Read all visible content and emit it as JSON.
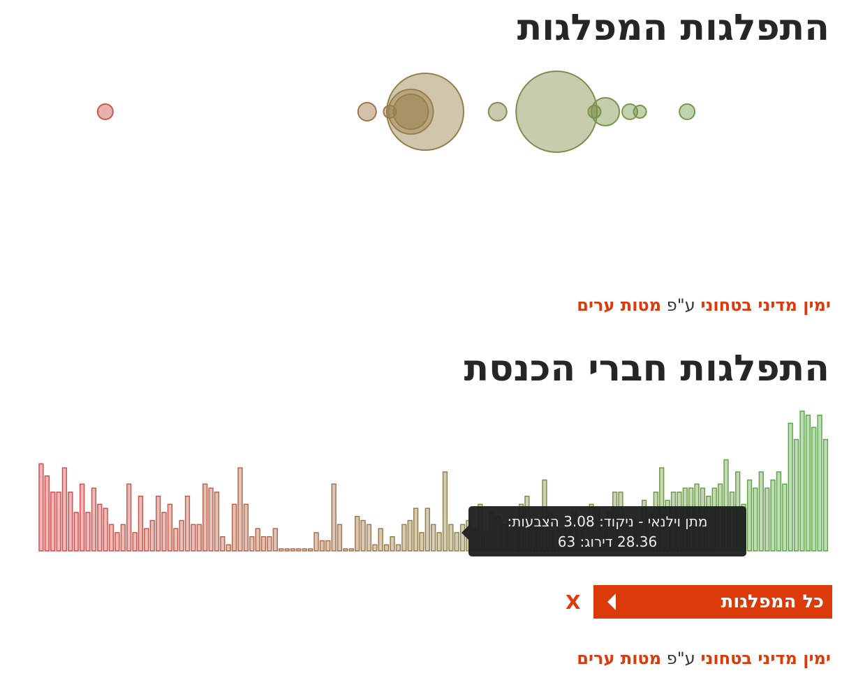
{
  "sections": {
    "parties_title": "התפלגות המפלגות",
    "members_title": "התפלגות חברי הכנסת"
  },
  "credit": {
    "prefix": "ימין מדיני בטחוני",
    "sep": "ע\"פ",
    "source": "מטות ערים"
  },
  "filter": {
    "label": "כל המפלגות",
    "close_label": "X"
  },
  "tooltip": {
    "line1": "מתן וילנאי - ניקוד: 3.08 הצבעות:",
    "line2": "28.36 דירוג: 63"
  },
  "colors": {
    "accent": "#dd3a0c",
    "left": "#dc4a4e",
    "mid": "#93814a",
    "right": "#5aab4a"
  },
  "chart_data": [
    {
      "type": "scatter",
      "description_axis": "position scale 0–100 (left = red, right = green)",
      "xlim": [
        0,
        100
      ],
      "points": [
        {
          "x": 12.5,
          "r": 11
        },
        {
          "x": 43.6,
          "r": 13
        },
        {
          "x": 46.3,
          "r": 9
        },
        {
          "x": 50.5,
          "r": 55
        },
        {
          "x": 48.8,
          "r": 32
        },
        {
          "x": 48.8,
          "r": 25
        },
        {
          "x": 59.1,
          "r": 13
        },
        {
          "x": 66.1,
          "r": 58
        },
        {
          "x": 70.6,
          "r": 9
        },
        {
          "x": 71.9,
          "r": 20
        },
        {
          "x": 74.8,
          "r": 11
        },
        {
          "x": 76.0,
          "r": 9
        },
        {
          "x": 81.6,
          "r": 11
        }
      ]
    },
    {
      "type": "bar",
      "description_axis": "members ordered left to right, bar height = score",
      "values": [
        21.5,
        18.5,
        14.5,
        14.5,
        20.5,
        14.5,
        9.5,
        16.5,
        9.5,
        15.5,
        11.5,
        10.5,
        6.5,
        4.5,
        6.5,
        16.5,
        4.5,
        13.5,
        5.5,
        7.5,
        13.5,
        9.5,
        11.5,
        5.5,
        7.5,
        13.5,
        6.5,
        6.5,
        16.5,
        15.5,
        14.5,
        3.5,
        1.5,
        11.5,
        20.5,
        11.5,
        3.5,
        5.5,
        3.5,
        3.5,
        5.5,
        0.5,
        0.5,
        0.5,
        0.5,
        0.5,
        0.5,
        4.5,
        2.5,
        2.5,
        16.5,
        6.5,
        0.5,
        0.5,
        8.5,
        7.5,
        6.5,
        1.5,
        5.5,
        1.5,
        3.5,
        1.5,
        6.5,
        7.5,
        10.5,
        4.5,
        10.5,
        6.5,
        4.5,
        19.5,
        6.5,
        4.5,
        6.5,
        7.5,
        5.5,
        11.5,
        4.5,
        9.5,
        8.5,
        6.5,
        7.5,
        6.5,
        11.5,
        13.5,
        7.5,
        7.5,
        17.5,
        9.5,
        6.5,
        5.5,
        7.5,
        9.5,
        6.5,
        5.5,
        11.5,
        10.5,
        7.5,
        9.5,
        14.5,
        14.5,
        7.5,
        7.5,
        7.5,
        12.5,
        9.5,
        14.5,
        20.5,
        12.5,
        14.5,
        14.5,
        15.5,
        15.5,
        16.5,
        15.5,
        13.5,
        15.5,
        16.5,
        22.5,
        14.5,
        19.5,
        11.5,
        17.5,
        15.5,
        19.5,
        15.5,
        17.5,
        19.5,
        16.5,
        31.5,
        27.5,
        34.5,
        33.5,
        30.5,
        33.5,
        27.5
      ]
    }
  ]
}
